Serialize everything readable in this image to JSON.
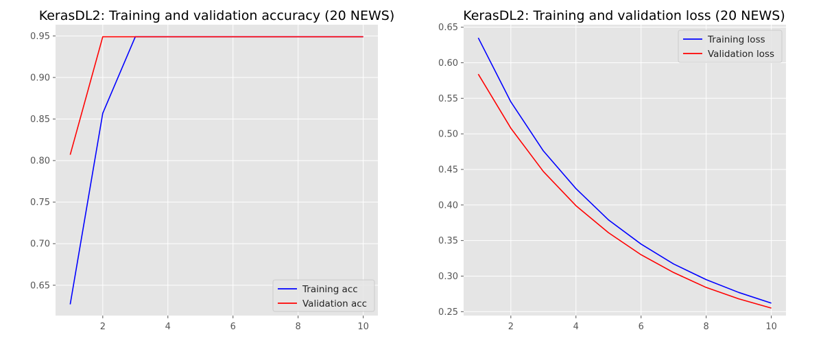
{
  "chart_data": [
    {
      "type": "line",
      "title": "KerasDL2: Training and validation accuracy (20 NEWS)",
      "xlabel": "",
      "ylabel": "",
      "xlim": [
        0.55,
        10.45
      ],
      "ylim": [
        0.6135,
        0.9635
      ],
      "xticks": [
        2,
        4,
        6,
        8,
        10
      ],
      "yticks": [
        0.65,
        0.7,
        0.75,
        0.8,
        0.85,
        0.9,
        0.95
      ],
      "ytick_labels": [
        "0.65",
        "0.70",
        "0.75",
        "0.80",
        "0.85",
        "0.90",
        "0.95"
      ],
      "grid": true,
      "legend_position": "lower-right",
      "x": [
        1,
        2,
        3,
        4,
        5,
        6,
        7,
        8,
        9,
        10
      ],
      "series": [
        {
          "name": "Training acc",
          "color": "#0000ff",
          "values": [
            0.627,
            0.857,
            0.949,
            0.949,
            0.949,
            0.949,
            0.949,
            0.949,
            0.949,
            0.949
          ]
        },
        {
          "name": "Validation acc",
          "color": "#ff0000",
          "values": [
            0.807,
            0.949,
            0.949,
            0.949,
            0.949,
            0.949,
            0.949,
            0.949,
            0.949,
            0.949
          ]
        }
      ]
    },
    {
      "type": "line",
      "title": "KerasDL2: Training and validation loss (20 NEWS)",
      "xlabel": "",
      "ylabel": "",
      "xlim": [
        0.55,
        10.45
      ],
      "ylim": [
        0.2445,
        0.6535
      ],
      "xticks": [
        2,
        4,
        6,
        8,
        10
      ],
      "yticks": [
        0.25,
        0.3,
        0.35,
        0.4,
        0.45,
        0.5,
        0.55,
        0.6,
        0.65
      ],
      "ytick_labels": [
        "0.25",
        "0.30",
        "0.35",
        "0.40",
        "0.45",
        "0.50",
        "0.55",
        "0.60",
        "0.65"
      ],
      "grid": true,
      "legend_position": "upper-right",
      "x": [
        1,
        2,
        3,
        4,
        5,
        6,
        7,
        8,
        9,
        10
      ],
      "series": [
        {
          "name": "Training loss",
          "color": "#0000ff",
          "values": [
            0.635,
            0.545,
            0.476,
            0.423,
            0.379,
            0.345,
            0.317,
            0.295,
            0.277,
            0.262
          ]
        },
        {
          "name": "Validation loss",
          "color": "#ff0000",
          "values": [
            0.584,
            0.508,
            0.447,
            0.399,
            0.361,
            0.33,
            0.305,
            0.284,
            0.268,
            0.255
          ]
        }
      ]
    }
  ]
}
